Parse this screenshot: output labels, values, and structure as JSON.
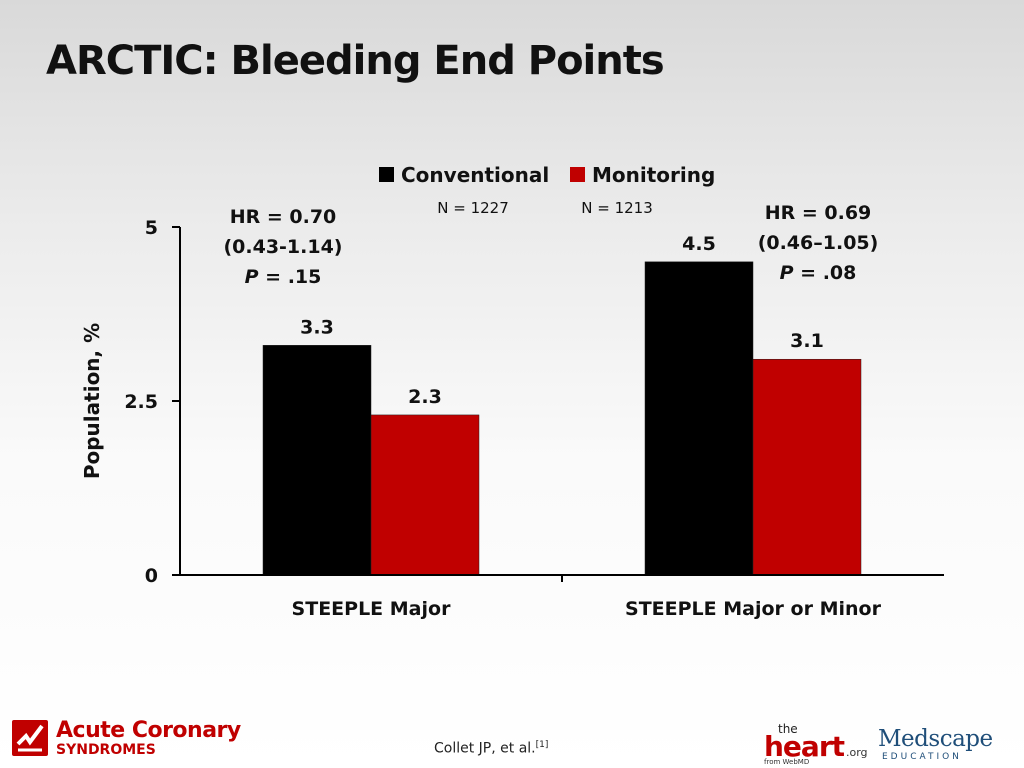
{
  "slide": {
    "title": "ARCTIC: Bleeding End Points",
    "citation": "Collet JP, et al.",
    "citation_ref": "[1]"
  },
  "logos": {
    "acs_line1": "Acute Coronary",
    "acs_line2": "SYNDROMES",
    "heart_the": "the",
    "heart_main": "heart",
    "heart_org": ".org",
    "heart_from": "from WebMD",
    "medscape_main": "Medscape",
    "medscape_sub": "EDUCATION"
  },
  "chart_data": {
    "type": "bar",
    "title": "",
    "xlabel": "",
    "ylabel": "Population, %",
    "ylim": [
      0,
      5
    ],
    "yticks": [
      "0",
      "2.5",
      "5"
    ],
    "grid": false,
    "legend_position": "top-center",
    "categories": [
      "STEEPLE Major",
      "STEEPLE Major or Minor"
    ],
    "series": [
      {
        "name": "Conventional",
        "n_label": "N = 1227",
        "color": "#000000",
        "values": [
          3.3,
          4.5
        ],
        "labels": [
          "3.3",
          "4.5"
        ]
      },
      {
        "name": "Monitoring",
        "n_label": "N = 1213",
        "color": "#c00000",
        "values": [
          2.3,
          3.1
        ],
        "labels": [
          "2.3",
          "3.1"
        ]
      }
    ],
    "annotations": [
      {
        "hr": "HR = 0.70",
        "ci": "(0.43-1.14)",
        "p_prefix": "P",
        "p_value": " = .15"
      },
      {
        "hr": "HR = 0.69",
        "ci": "(0.46–1.05)",
        "p_prefix": "P",
        "p_value": " = .08"
      }
    ]
  }
}
